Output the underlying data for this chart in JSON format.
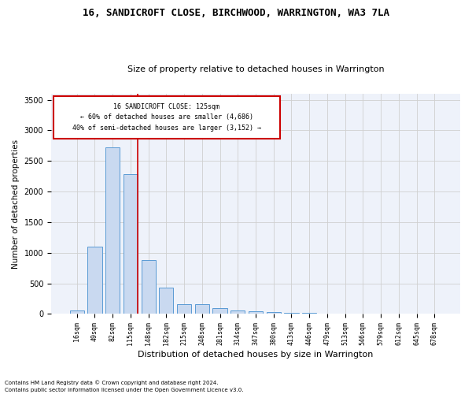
{
  "title": "16, SANDICROFT CLOSE, BIRCHWOOD, WARRINGTON, WA3 7LA",
  "subtitle": "Size of property relative to detached houses in Warrington",
  "xlabel": "Distribution of detached houses by size in Warrington",
  "ylabel": "Number of detached properties",
  "categories": [
    "16sqm",
    "49sqm",
    "82sqm",
    "115sqm",
    "148sqm",
    "182sqm",
    "215sqm",
    "248sqm",
    "281sqm",
    "314sqm",
    "347sqm",
    "380sqm",
    "413sqm",
    "446sqm",
    "479sqm",
    "513sqm",
    "546sqm",
    "579sqm",
    "612sqm",
    "645sqm",
    "678sqm"
  ],
  "values": [
    50,
    1100,
    2720,
    2280,
    880,
    425,
    165,
    160,
    90,
    55,
    45,
    30,
    20,
    20,
    5,
    0,
    0,
    0,
    0,
    0,
    0
  ],
  "bar_color": "#c9d9f0",
  "bar_edge_color": "#5b9bd5",
  "grid_color": "#d0d0d0",
  "bg_color": "#eef2fa",
  "property_label": "16 SANDICROFT CLOSE: 125sqm",
  "pct_smaller": 60,
  "n_smaller": 4686,
  "pct_larger_semi": 40,
  "n_larger_semi": 3152,
  "vline_bin_index": 3,
  "annotation_box_color": "#cc0000",
  "ylim": [
    0,
    3600
  ],
  "yticks": [
    0,
    500,
    1000,
    1500,
    2000,
    2500,
    3000,
    3500
  ],
  "footnote1": "Contains HM Land Registry data © Crown copyright and database right 2024.",
  "footnote2": "Contains public sector information licensed under the Open Government Licence v3.0."
}
